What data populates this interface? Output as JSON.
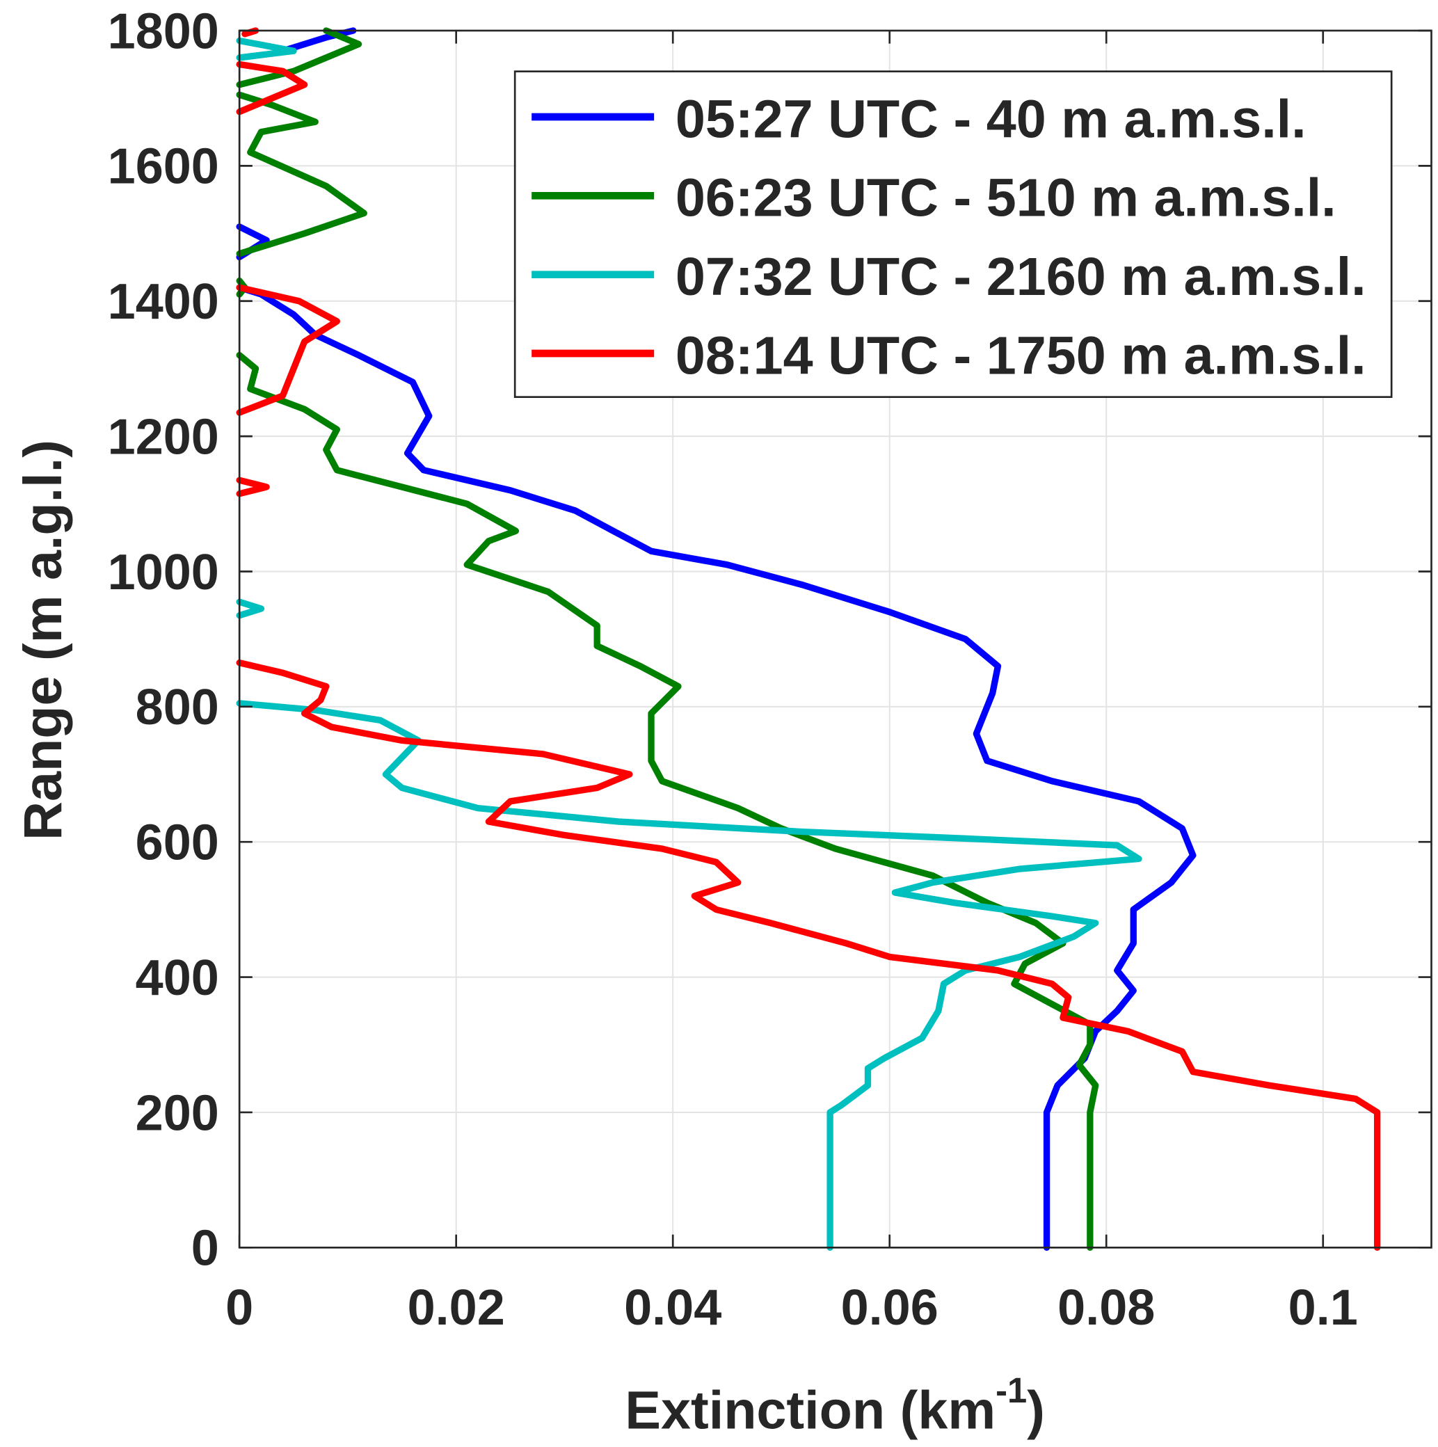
{
  "chart_data": {
    "type": "line",
    "xlabel": "Extinction (km",
    "xlabel_sup": "-1",
    "xlabel_end": ")",
    "ylabel": "Range (m a.g.l.)",
    "xlim": [
      0,
      0.11
    ],
    "ylim": [
      0,
      1800
    ],
    "xticks": [
      0,
      0.02,
      0.04,
      0.06,
      0.08,
      0.1
    ],
    "xtick_labels": [
      "0",
      "0.02",
      "0.04",
      "0.06",
      "0.08",
      "0.1"
    ],
    "yticks": [
      0,
      200,
      400,
      600,
      800,
      1000,
      1200,
      1400,
      1600,
      1800
    ],
    "ytick_labels": [
      "0",
      "200",
      "400",
      "600",
      "800",
      "1000",
      "1200",
      "1400",
      "1600",
      "1800"
    ],
    "grid": true,
    "legend_position": "top-right",
    "series": [
      {
        "name": "05:27 UTC - 40 m a.m.s.l.",
        "color": "#0000ff",
        "segments": [
          [
            [
              0.0745,
              0
            ],
            [
              0.0745,
              200
            ],
            [
              0.0755,
              240
            ],
            [
              0.078,
              280
            ],
            [
              0.079,
              320
            ],
            [
              0.081,
              350
            ],
            [
              0.0825,
              380
            ],
            [
              0.081,
              410
            ],
            [
              0.0825,
              450
            ],
            [
              0.0825,
              500
            ],
            [
              0.086,
              540
            ],
            [
              0.088,
              580
            ],
            [
              0.087,
              620
            ],
            [
              0.083,
              660
            ],
            [
              0.075,
              690
            ],
            [
              0.069,
              720
            ],
            [
              0.068,
              760
            ],
            [
              0.0695,
              820
            ],
            [
              0.07,
              860
            ],
            [
              0.067,
              900
            ],
            [
              0.06,
              940
            ],
            [
              0.052,
              980
            ],
            [
              0.045,
              1010
            ],
            [
              0.038,
              1030
            ],
            [
              0.0345,
              1060
            ],
            [
              0.031,
              1090
            ],
            [
              0.025,
              1120
            ],
            [
              0.017,
              1150
            ],
            [
              0.0155,
              1175
            ],
            [
              0.0175,
              1230
            ],
            [
              0.016,
              1280
            ],
            [
              0.011,
              1320
            ],
            [
              0.007,
              1350
            ],
            [
              0.005,
              1380
            ],
            [
              0.002,
              1410
            ],
            [
              0,
              1420
            ]
          ],
          [
            [
              0,
              1465
            ],
            [
              0.0025,
              1490
            ],
            [
              0,
              1510
            ]
          ],
          [
            [
              0.004,
              1770
            ],
            [
              0.008,
              1790
            ],
            [
              0.0105,
              1800
            ]
          ]
        ]
      },
      {
        "name": "06:23 UTC - 510 m a.m.s.l.",
        "color": "#008000",
        "segments": [
          [
            [
              0.0785,
              0
            ],
            [
              0.0785,
              200
            ],
            [
              0.079,
              240
            ],
            [
              0.0775,
              270
            ],
            [
              0.0785,
              300
            ],
            [
              0.0785,
              330
            ],
            [
              0.075,
              360
            ],
            [
              0.0715,
              390
            ],
            [
              0.0725,
              420
            ],
            [
              0.076,
              450
            ],
            [
              0.0735,
              480
            ],
            [
              0.069,
              510
            ],
            [
              0.064,
              550
            ],
            [
              0.055,
              590
            ],
            [
              0.05,
              620
            ],
            [
              0.046,
              650
            ],
            [
              0.039,
              690
            ],
            [
              0.038,
              720
            ],
            [
              0.038,
              760
            ],
            [
              0.038,
              790
            ],
            [
              0.0405,
              830
            ],
            [
              0.037,
              860
            ],
            [
              0.033,
              890
            ],
            [
              0.033,
              920
            ],
            [
              0.0285,
              970
            ],
            [
              0.021,
              1010
            ],
            [
              0.023,
              1045
            ],
            [
              0.0255,
              1060
            ],
            [
              0.021,
              1100
            ],
            [
              0.009,
              1150
            ],
            [
              0.008,
              1180
            ],
            [
              0.009,
              1210
            ],
            [
              0.006,
              1240
            ],
            [
              0.001,
              1270
            ],
            [
              0.0015,
              1300
            ],
            [
              0,
              1320
            ]
          ],
          [
            [
              0,
              1410
            ],
            [
              0.0005,
              1420
            ],
            [
              0,
              1430
            ]
          ],
          [
            [
              0,
              1470
            ],
            [
              0.006,
              1500
            ],
            [
              0.0115,
              1530
            ],
            [
              0.008,
              1570
            ],
            [
              0.001,
              1620
            ],
            [
              0.002,
              1650
            ],
            [
              0.007,
              1665
            ],
            [
              0.003,
              1690
            ],
            [
              0,
              1705
            ]
          ],
          [
            [
              0,
              1720
            ],
            [
              0.005,
              1740
            ],
            [
              0.011,
              1780
            ],
            [
              0.008,
              1800
            ]
          ]
        ]
      },
      {
        "name": "07:32 UTC - 2160 m a.m.s.l.",
        "color": "#00bfbf",
        "segments": [
          [
            [
              0.0545,
              0
            ],
            [
              0.0545,
              200
            ],
            [
              0.0555,
              210
            ],
            [
              0.058,
              240
            ],
            [
              0.058,
              265
            ],
            [
              0.0595,
              280
            ],
            [
              0.063,
              310
            ],
            [
              0.0645,
              350
            ],
            [
              0.065,
              390
            ],
            [
              0.067,
              410
            ],
            [
              0.072,
              430
            ],
            [
              0.077,
              460
            ],
            [
              0.079,
              480
            ],
            [
              0.075,
              490
            ],
            [
              0.066,
              510
            ],
            [
              0.0605,
              525
            ],
            [
              0.064,
              540
            ],
            [
              0.072,
              560
            ],
            [
              0.083,
              575
            ],
            [
              0.081,
              595
            ],
            [
              0.067,
              605
            ],
            [
              0.052,
              615
            ],
            [
              0.035,
              630
            ],
            [
              0.022,
              650
            ],
            [
              0.015,
              680
            ],
            [
              0.0135,
              700
            ],
            [
              0.0165,
              750
            ],
            [
              0.013,
              780
            ],
            [
              0.007,
              795
            ],
            [
              0,
              805
            ]
          ],
          [
            [
              0,
              935
            ],
            [
              0.002,
              945
            ],
            [
              0,
              955
            ]
          ],
          [
            [
              0,
              1760
            ],
            [
              0.005,
              1770
            ],
            [
              0,
              1785
            ]
          ]
        ]
      },
      {
        "name": "08:14 UTC - 1750 m a.m.s.l.",
        "color": "#ff0000",
        "segments": [
          [
            [
              0.105,
              0
            ],
            [
              0.105,
              200
            ],
            [
              0.103,
              220
            ],
            [
              0.095,
              240
            ],
            [
              0.088,
              260
            ],
            [
              0.087,
              290
            ],
            [
              0.082,
              320
            ],
            [
              0.076,
              340
            ],
            [
              0.0765,
              370
            ],
            [
              0.075,
              390
            ],
            [
              0.07,
              410
            ],
            [
              0.06,
              430
            ],
            [
              0.056,
              450
            ],
            [
              0.049,
              480
            ],
            [
              0.044,
              500
            ],
            [
              0.042,
              520
            ],
            [
              0.046,
              540
            ],
            [
              0.044,
              570
            ],
            [
              0.039,
              590
            ],
            [
              0.03,
              610
            ],
            [
              0.023,
              630
            ],
            [
              0.025,
              660
            ],
            [
              0.033,
              680
            ],
            [
              0.036,
              700
            ],
            [
              0.028,
              730
            ],
            [
              0.015,
              750
            ],
            [
              0.0085,
              770
            ],
            [
              0.006,
              790
            ],
            [
              0.0075,
              810
            ],
            [
              0.008,
              830
            ],
            [
              0.004,
              850
            ],
            [
              0,
              865
            ]
          ],
          [
            [
              0,
              1115
            ],
            [
              0.0025,
              1125
            ],
            [
              0,
              1135
            ]
          ],
          [
            [
              0,
              1235
            ],
            [
              0.004,
              1260
            ],
            [
              0.005,
              1300
            ],
            [
              0.006,
              1340
            ],
            [
              0.009,
              1370
            ],
            [
              0.0055,
              1400
            ],
            [
              0,
              1420
            ]
          ],
          [
            [
              0,
              1680
            ],
            [
              0.006,
              1720
            ],
            [
              0.004,
              1740
            ],
            [
              0,
              1750
            ]
          ],
          [
            [
              0.0005,
              1795
            ],
            [
              0.0015,
              1800
            ]
          ]
        ]
      }
    ]
  }
}
